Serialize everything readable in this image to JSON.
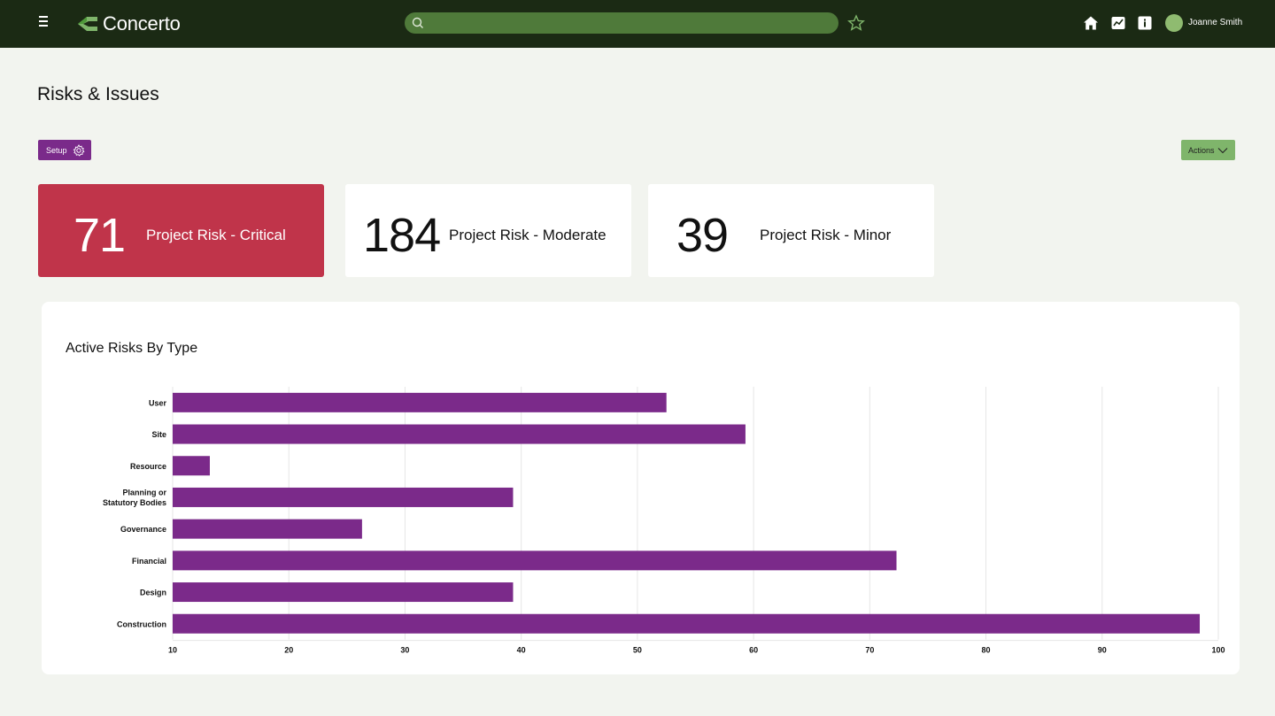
{
  "app": {
    "name": "Concerto",
    "user": "Joanne Smith",
    "search_placeholder": ""
  },
  "page": {
    "title": "Risks & Issues",
    "setup_label": "Setup",
    "actions_label": "Actions"
  },
  "cards": [
    {
      "value": "71",
      "label": "Project Risk - Critical"
    },
    {
      "value": "184",
      "label": "Project Risk - Moderate"
    },
    {
      "value": "39",
      "label": "Project Risk - Minor"
    }
  ],
  "colors": {
    "topbar": "#1b2a14",
    "search": "#4f7a3a",
    "setup": "#7a2a8a",
    "actions": "#7fb56b",
    "critical": "#c0344a",
    "bar": "#7b2a8a"
  },
  "chart_data": {
    "type": "bar",
    "orientation": "horizontal",
    "title": "Active Risks By Type",
    "categories": [
      "User",
      "Site",
      "Resource",
      "Planning or Statutory Bodies",
      "Governance",
      "Financial",
      "Design",
      "Construction"
    ],
    "category_lines": [
      [
        "User"
      ],
      [
        "Site"
      ],
      [
        "Resource"
      ],
      [
        "Planning or",
        "Statutory Bodies"
      ],
      [
        "Governance"
      ],
      [
        "Financial"
      ],
      [
        "Design"
      ],
      [
        "Construction"
      ]
    ],
    "values": [
      52.5,
      59.3,
      13.2,
      39.3,
      26.3,
      72.3,
      39.3,
      98.4
    ],
    "xlim": [
      10,
      100
    ],
    "xticks": [
      10,
      20,
      30,
      40,
      50,
      60,
      70,
      80,
      90,
      100
    ],
    "grid": true,
    "xlabel": "",
    "ylabel": ""
  }
}
